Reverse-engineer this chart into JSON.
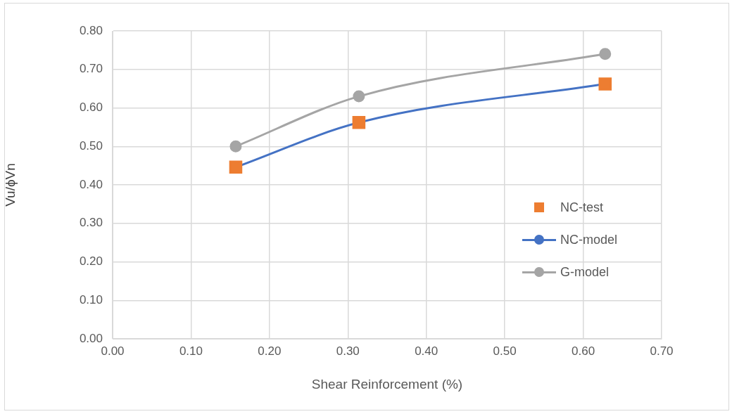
{
  "chart_data": {
    "type": "line",
    "xlabel": "Shear Reinforcement (%)",
    "ylabel": "Vu/ϕVn",
    "xlim": [
      0,
      0.7
    ],
    "xticks": [
      {
        "value": 0,
        "label": "0.00"
      },
      {
        "value": 0.1,
        "label": "0.10"
      },
      {
        "value": 0.2,
        "label": "0.20"
      },
      {
        "value": 0.3,
        "label": "0.30"
      },
      {
        "value": 0.4,
        "label": "0.40"
      },
      {
        "value": 0.5,
        "label": "0.50"
      },
      {
        "value": 0.6,
        "label": "0.60"
      },
      {
        "value": 0.7,
        "label": "0.70"
      }
    ],
    "ylim": [
      0,
      0.8
    ],
    "yticks": [
      {
        "value": 0,
        "label": "0.00"
      },
      {
        "value": 0.1,
        "label": "0.10"
      },
      {
        "value": 0.2,
        "label": "0.20"
      },
      {
        "value": 0.3,
        "label": "0.30"
      },
      {
        "value": 0.4,
        "label": "0.40"
      },
      {
        "value": 0.5,
        "label": "0.50"
      },
      {
        "value": 0.6,
        "label": "0.60"
      },
      {
        "value": 0.7,
        "label": "0.70"
      },
      {
        "value": 0.8,
        "label": "0.80"
      }
    ],
    "grid": true,
    "legend": "right",
    "series": [
      {
        "name": "NC-test",
        "type": "scatter",
        "color": "#ed7d31",
        "marker": "square",
        "x": [
          0.157,
          0.314,
          0.628
        ],
        "values": [
          0.446,
          0.562,
          0.662
        ]
      },
      {
        "name": "NC-model",
        "color": "#4472c4",
        "marker": "circle",
        "x": [
          0.157,
          0.314,
          0.628
        ],
        "values": [
          0.446,
          0.562,
          0.662
        ]
      },
      {
        "name": "G-model",
        "color": "#a5a5a5",
        "marker": "circle",
        "x": [
          0.157,
          0.314,
          0.628
        ],
        "values": [
          0.5,
          0.63,
          0.74
        ]
      }
    ]
  }
}
